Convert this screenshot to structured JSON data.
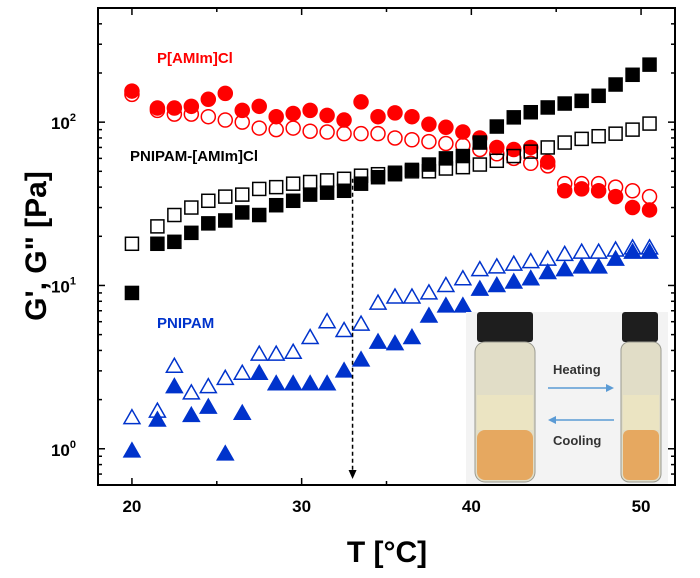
{
  "chart_data": {
    "type": "scatter",
    "title": "",
    "xlabel": "T [°C]",
    "ylabel": "G', G\" [Pa]",
    "xlim": [
      18,
      52
    ],
    "ylim": [
      0.6,
      500
    ],
    "yscale": "log",
    "xticks": [
      20,
      30,
      40,
      50
    ],
    "xtick_labels": [
      "20",
      "30",
      "40",
      "50"
    ],
    "yticks": [
      1,
      10,
      100
    ],
    "ytick_labels": [
      "10",
      "10",
      "10"
    ],
    "ytick_exponents": [
      "0",
      "1",
      "2"
    ],
    "series": [
      {
        "name": "P[AMIm]Cl G'",
        "label": "P[AMIm]Cl",
        "color": "#ff0000",
        "marker": "circle",
        "filled": true,
        "x": [
          20,
          21.5,
          22.5,
          23.5,
          24.5,
          25.5,
          26.5,
          27.5,
          28.5,
          29.5,
          30.5,
          31.5,
          32.5,
          33.5,
          34.5,
          35.5,
          36.5,
          37.5,
          38.5,
          39.5,
          40.5,
          41.5,
          42.5,
          43.5,
          44.5,
          45.5,
          46.5,
          47.5,
          48.5,
          49.5,
          50.5
        ],
        "y": [
          155,
          122,
          122,
          125,
          138,
          150,
          118,
          125,
          108,
          113,
          118,
          110,
          103,
          133,
          108,
          114,
          108,
          97,
          93,
          87,
          80,
          70,
          68,
          70,
          57,
          38,
          39,
          38,
          35,
          30,
          29
        ]
      },
      {
        "name": "P[AMIm]Cl G\"",
        "color": "#ff0000",
        "marker": "circle",
        "filled": false,
        "x": [
          20,
          21.5,
          22.5,
          23.5,
          24.5,
          25.5,
          26.5,
          27.5,
          28.5,
          29.5,
          30.5,
          31.5,
          32.5,
          33.5,
          34.5,
          35.5,
          36.5,
          37.5,
          38.5,
          39.5,
          40.5,
          41.5,
          42.5,
          43.5,
          44.5,
          45.5,
          46.5,
          47.5,
          48.5,
          49.5,
          50.5
        ],
        "y": [
          148,
          118,
          112,
          112,
          108,
          103,
          100,
          92,
          90,
          92,
          88,
          87,
          85,
          85,
          85,
          80,
          78,
          76,
          74,
          72,
          68,
          64,
          60,
          56,
          54,
          42,
          42,
          42,
          40,
          38,
          35
        ]
      },
      {
        "name": "PNIPAM-[AMIm]Cl G'",
        "label": "PNIPAM-[AMIm]Cl",
        "color": "#000000",
        "marker": "square",
        "filled": true,
        "x": [
          20,
          21.5,
          22.5,
          23.5,
          24.5,
          25.5,
          26.5,
          27.5,
          28.5,
          29.5,
          30.5,
          31.5,
          32.5,
          33.5,
          34.5,
          35.5,
          36.5,
          37.5,
          38.5,
          39.5,
          40.5,
          41.5,
          42.5,
          43.5,
          44.5,
          45.5,
          46.5,
          47.5,
          48.5,
          49.5,
          50.5
        ],
        "y": [
          9,
          18,
          18.5,
          21,
          24,
          25,
          28,
          27,
          31,
          33,
          36,
          37,
          38,
          42,
          46,
          48,
          51,
          55,
          60,
          62,
          75,
          94,
          107,
          115,
          123,
          130,
          135,
          145,
          170,
          195,
          225
        ]
      },
      {
        "name": "PNIPAM-[AMIm]Cl G\"",
        "color": "#000000",
        "marker": "square",
        "filled": false,
        "x": [
          20,
          21.5,
          22.5,
          23.5,
          24.5,
          25.5,
          26.5,
          27.5,
          28.5,
          29.5,
          30.5,
          31.5,
          32.5,
          33.5,
          34.5,
          35.5,
          36.5,
          37.5,
          38.5,
          39.5,
          40.5,
          41.5,
          42.5,
          43.5,
          44.5,
          45.5,
          46.5,
          47.5,
          48.5,
          49.5,
          50.5
        ],
        "y": [
          18,
          23,
          27,
          30,
          33,
          35,
          36,
          39,
          40,
          42,
          43,
          44,
          45,
          47,
          48,
          49,
          50,
          50,
          52,
          53,
          55,
          58,
          62,
          66,
          70,
          75,
          79,
          82,
          85,
          90,
          98
        ]
      },
      {
        "name": "PNIPAM G'",
        "label": "PNIPAM",
        "color": "#0033cc",
        "marker": "triangle",
        "filled": true,
        "x": [
          20,
          21.5,
          22.5,
          23.5,
          24.5,
          25.5,
          26.5,
          27.5,
          28.5,
          29.5,
          30.5,
          31.5,
          32.5,
          33.5,
          34.5,
          35.5,
          36.5,
          37.5,
          38.5,
          39.5,
          40.5,
          41.5,
          42.5,
          43.5,
          44.5,
          45.5,
          46.5,
          47.5,
          48.5,
          49.5,
          50.5
        ],
        "y": [
          0.97,
          1.5,
          2.4,
          1.6,
          1.8,
          0.93,
          1.65,
          2.9,
          2.5,
          2.5,
          2.5,
          2.5,
          3.0,
          3.5,
          4.5,
          4.4,
          4.8,
          6.5,
          7.5,
          7.5,
          9.5,
          10,
          10.5,
          11,
          12,
          12.5,
          13,
          13,
          14.5,
          16,
          16
        ]
      },
      {
        "name": "PNIPAM G\"",
        "color": "#0033cc",
        "marker": "triangle",
        "filled": false,
        "x": [
          20,
          21.5,
          22.5,
          23.5,
          24.5,
          25.5,
          26.5,
          27.5,
          28.5,
          29.5,
          30.5,
          31.5,
          32.5,
          33.5,
          34.5,
          35.5,
          36.5,
          37.5,
          38.5,
          39.5,
          40.5,
          41.5,
          42.5,
          43.5,
          44.5,
          45.5,
          46.5,
          47.5,
          48.5,
          49.5,
          50.5
        ],
        "y": [
          1.55,
          1.7,
          3.2,
          2.2,
          2.4,
          2.7,
          2.9,
          3.8,
          3.8,
          3.9,
          4.8,
          6.0,
          5.3,
          5.8,
          7.8,
          8.5,
          8.5,
          9.0,
          10,
          11,
          12.5,
          13,
          13.5,
          14,
          14.5,
          15.5,
          16,
          16,
          16.5,
          17,
          17
        ]
      }
    ],
    "annotations": [
      {
        "type": "dashed-arrow",
        "x": 33,
        "y_from": 45,
        "y_to": 0.6
      }
    ],
    "inset": {
      "arrow_top_label": "Heating",
      "arrow_bottom_label": "Cooling"
    }
  }
}
